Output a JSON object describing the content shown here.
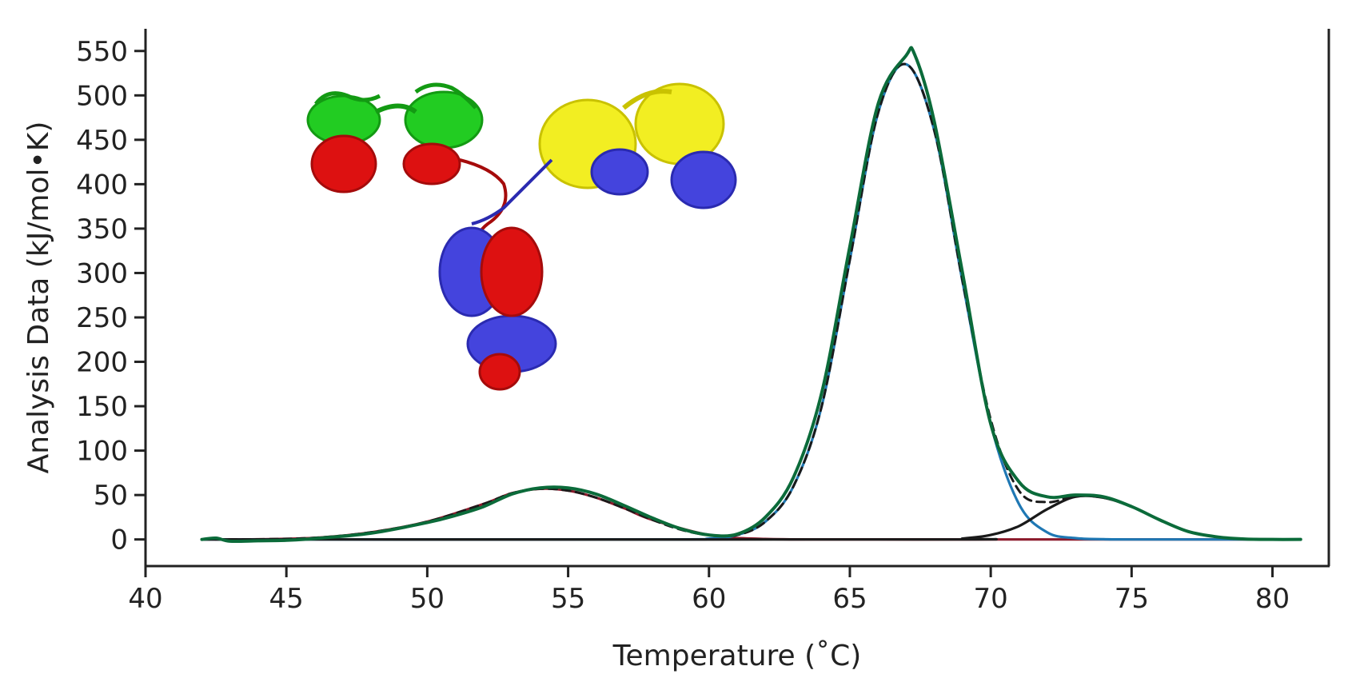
{
  "chart_data": {
    "type": "line",
    "title": "",
    "xlabel": "Temperature (˚C)",
    "ylabel": "Analysis Data (kJ/mol•K)",
    "xlim": [
      40,
      82
    ],
    "ylim": [
      -30,
      575
    ],
    "x_ticks": [
      40,
      45,
      50,
      55,
      60,
      65,
      70,
      75,
      80
    ],
    "y_ticks": [
      0,
      50,
      100,
      150,
      200,
      250,
      300,
      350,
      400,
      450,
      500,
      550
    ],
    "x_tick_labels": [
      "40",
      "45",
      "50",
      "55",
      "60",
      "65",
      "70",
      "75",
      "80"
    ],
    "y_tick_labels": [
      "0",
      "50",
      "100",
      "150",
      "200",
      "250",
      "300",
      "350",
      "400",
      "450",
      "500",
      "550"
    ],
    "grid": false,
    "legend": "none",
    "inset": {
      "kind": "protein ribbon structure",
      "colors": [
        "#22cc22",
        "#dd1111",
        "#4444dd",
        "#f2ee22"
      ]
    },
    "series": [
      {
        "color": "#8b1a2b",
        "style": "solid",
        "x": [
          42,
          44,
          46,
          48,
          50,
          52,
          53,
          54,
          55,
          56,
          57,
          58,
          60,
          62,
          66,
          70,
          75,
          81
        ],
        "y": [
          0,
          0.2,
          1.8,
          8,
          20,
          40,
          52,
          57,
          55,
          47,
          35,
          22,
          5,
          0.5,
          0,
          0,
          0,
          0
        ]
      },
      {
        "color": "#1f78b4",
        "style": "solid",
        "x": [
          42,
          58,
          60,
          61,
          62,
          63,
          64,
          65,
          66,
          67,
          68,
          69,
          70,
          71,
          72,
          73,
          74,
          75,
          81
        ],
        "y": [
          0,
          0,
          1,
          5,
          20,
          60,
          150,
          315,
          480,
          535,
          460,
          290,
          130,
          40,
          8,
          1.5,
          0.3,
          0,
          0
        ]
      },
      {
        "color": "#1a1a1a",
        "style": "solid",
        "x": [
          42,
          68,
          69,
          70,
          71,
          72,
          73,
          74,
          75,
          76,
          77,
          78,
          79,
          81
        ],
        "y": [
          0,
          0,
          1,
          5,
          15,
          34,
          48,
          47,
          37,
          22,
          9,
          3,
          0.5,
          0
        ]
      },
      {
        "color": "#1a1a1a",
        "style": "dashed",
        "x": [
          42,
          44,
          46,
          48,
          50,
          52,
          53,
          54,
          55,
          56,
          57,
          58,
          59,
          60,
          61,
          62,
          63,
          64,
          65,
          66,
          67,
          68,
          69,
          70,
          71,
          72,
          73,
          74,
          75,
          76,
          77,
          78,
          79,
          81
        ],
        "y": [
          0,
          0.2,
          1.8,
          8,
          20,
          40,
          52,
          57,
          55,
          47,
          35,
          22,
          11,
          5,
          5,
          20,
          60,
          150,
          315,
          480,
          535,
          460,
          291,
          135,
          55,
          42,
          49,
          47,
          37,
          22,
          9,
          3,
          0.5,
          0
        ]
      },
      {
        "color": "#0b6b3a",
        "style": "solid",
        "x": [
          42,
          42.5,
          43,
          44,
          45,
          46,
          48,
          50,
          51,
          52,
          53,
          54,
          55,
          56,
          57,
          58,
          59,
          60,
          61,
          62,
          63,
          64,
          65,
          66,
          67,
          67.3,
          68,
          69,
          70,
          71,
          72,
          73,
          74,
          75,
          76,
          77,
          78,
          79,
          80,
          81
        ],
        "y": [
          0,
          1.5,
          -2,
          -1.5,
          -1,
          1,
          7,
          19,
          27,
          37,
          51,
          58,
          58,
          51,
          38,
          24,
          12,
          5,
          6,
          25,
          70,
          165,
          330,
          490,
          545,
          546,
          470,
          300,
          130,
          65,
          48,
          50,
          48,
          37,
          22,
          9,
          3,
          0.5,
          0,
          0
        ]
      }
    ]
  }
}
